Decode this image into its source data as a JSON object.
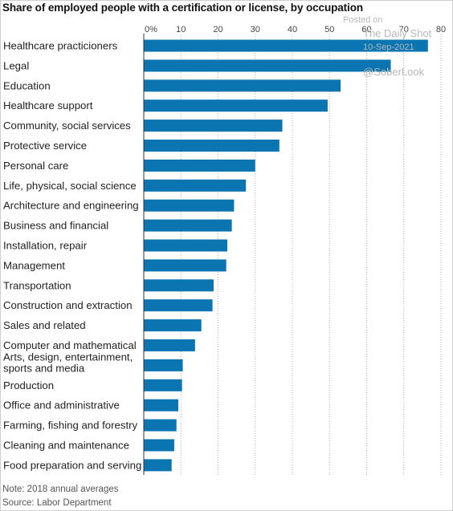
{
  "watermark": {
    "line1": "Posted on",
    "line2": "The Daily Shot",
    "line3": "10-Sep-2021",
    "line4": "@SoberLook"
  },
  "footer": {
    "note": "Note: 2018 annual averages",
    "source": "Source: Labor Department"
  },
  "colors": {
    "bar": "#0a75b0",
    "grid": "#b0b0b0",
    "axis": "#333333"
  },
  "chart_data": {
    "type": "bar",
    "orientation": "horizontal",
    "title": "Share of employed people with a certification or license, by occupation",
    "xlim": [
      0,
      80
    ],
    "x_ticks": [
      "0%",
      "10",
      "20",
      "30",
      "40",
      "50",
      "60",
      "70",
      "80"
    ],
    "x_tick_values": [
      0,
      10,
      20,
      30,
      40,
      50,
      60,
      70,
      80
    ],
    "grid": true,
    "categories": [
      "Healthcare practicioners",
      "Legal",
      "Education",
      "Healthcare support",
      "Community, social services",
      "Protective service",
      "Personal care",
      "Life, physical, social science",
      "Architecture and engineering",
      "Business and financial",
      "Installation, repair",
      "Management",
      "Transportation",
      "Construction and extraction",
      "Sales and related",
      "Computer and mathematical",
      "Arts, design, entertainment, sports and media",
      "Production",
      "Office and administrative",
      "Farming, fishing and forestry",
      "Cleaning and maintenance",
      "Food preparation and serving"
    ],
    "values": [
      76.5,
      66.5,
      53,
      49.5,
      37.3,
      36.5,
      30,
      27.5,
      24.3,
      23.7,
      22.5,
      22.2,
      18.8,
      18.5,
      15.5,
      13.8,
      10.5,
      10.3,
      9.3,
      8.8,
      8.2,
      7.5
    ]
  }
}
